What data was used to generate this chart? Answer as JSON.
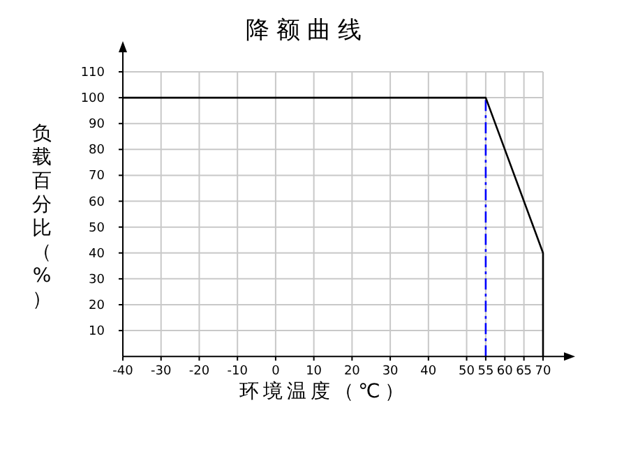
{
  "chart_data": {
    "type": "line",
    "title": "降额曲线",
    "xlabel": "环境温度（℃）",
    "ylabel": "负载百分比（%）",
    "x": [
      -40,
      55,
      70,
      70
    ],
    "series": [
      {
        "color": "#000000",
        "values": [
          100,
          100,
          40,
          0
        ]
      }
    ],
    "xlim": [
      -40,
      70
    ],
    "ylim": [
      0,
      110
    ],
    "xticks": [
      -40,
      -30,
      -20,
      -10,
      0,
      10,
      20,
      30,
      40,
      50,
      55,
      60,
      65,
      70
    ],
    "yticks": [
      10,
      20,
      30,
      40,
      50,
      60,
      70,
      80,
      90,
      100,
      110
    ],
    "grid": true,
    "marker": "none",
    "line_style": "solid",
    "ref_lines": [
      {
        "axis": "x",
        "value": 55,
        "color": "#0000ff",
        "line_style": "dashed"
      }
    ]
  }
}
